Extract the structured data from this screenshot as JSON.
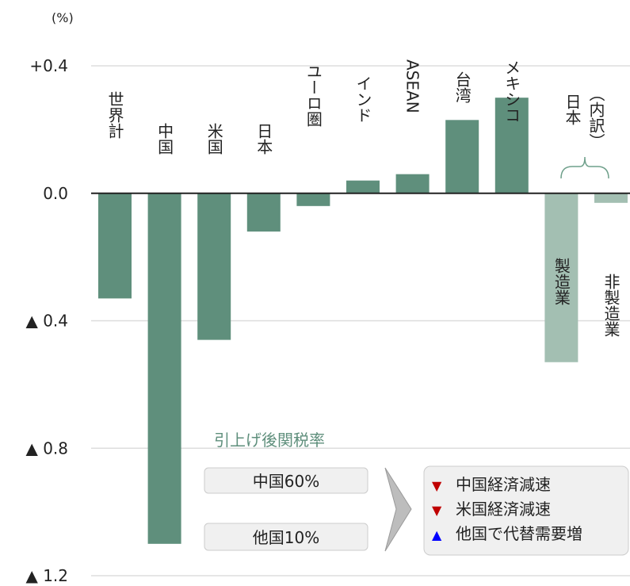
{
  "chart_data": {
    "type": "bar",
    "unit_label": "(%)",
    "categories": [
      "世界計",
      "中国",
      "米国",
      "日本",
      "ユーロ圏",
      "インド",
      "ASEAN",
      "台湾",
      "メキシコ",
      "製造業",
      "非製造業"
    ],
    "values": [
      -0.33,
      -1.1,
      -0.46,
      -0.12,
      -0.04,
      0.04,
      0.06,
      0.23,
      0.3,
      -0.53,
      -0.03
    ],
    "colors": [
      "#5f8f7c",
      "#5f8f7c",
      "#5f8f7c",
      "#5f8f7c",
      "#5f8f7c",
      "#5f8f7c",
      "#5f8f7c",
      "#5f8f7c",
      "#5f8f7c",
      "#a3bfb2",
      "#a3bfb2"
    ],
    "group_label": "日本",
    "group_sublabel": "（内訳）",
    "ylim": [
      -1.2,
      0.4
    ],
    "yticks": [
      {
        "value": 0.4,
        "label": "+0.4"
      },
      {
        "value": 0.0,
        "label": "0.0"
      },
      {
        "value": -0.4,
        "label": "▲ 0.4"
      },
      {
        "value": -0.8,
        "label": "▲ 0.8"
      },
      {
        "value": -1.2,
        "label": "▲ 1.2"
      }
    ],
    "grid": true,
    "annotation": {
      "title": "引上げ後関税率",
      "rates": [
        "中国60%",
        "他国10%"
      ],
      "effects": [
        {
          "marker": "▼",
          "color": "#c00000",
          "text": "中国経済減速"
        },
        {
          "marker": "▼",
          "color": "#c00000",
          "text": "米国経済減速"
        },
        {
          "marker": "▲",
          "color": "#0000ff",
          "text": "他国で代替需要増"
        }
      ]
    }
  }
}
